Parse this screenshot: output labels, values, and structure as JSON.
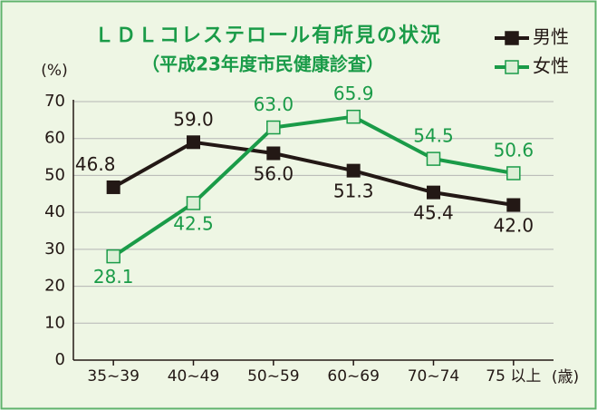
{
  "chart_data": {
    "type": "line",
    "title": "ＬＤＬコレステロール有所見の状況",
    "subtitle": "（平成23年度市民健康診査）",
    "y_label": "(%)",
    "x_label": "(歳)",
    "categories": [
      "35~39",
      "40~49",
      "50~59",
      "60~69",
      "70~74",
      "75 以上"
    ],
    "series": [
      {
        "name": "男性",
        "color": "#231815",
        "values": [
          46.8,
          59,
          56,
          51.3,
          45.4,
          42
        ],
        "value_labels": [
          "46.8",
          "59.0",
          "56.0",
          "51.3",
          "45.4",
          "42.0"
        ]
      },
      {
        "name": "女性",
        "color": "#1a9b48",
        "values": [
          28.1,
          42.5,
          63,
          65.9,
          54.5,
          50.6
        ],
        "value_labels": [
          "28.1",
          "42.5",
          "63.0",
          "65.9",
          "54.5",
          "50.6"
        ]
      }
    ],
    "ylim": [
      0,
      70
    ],
    "yticks": [
      0,
      10,
      20,
      30,
      40,
      50,
      60,
      70
    ],
    "grid": true,
    "legend": "top-right"
  }
}
